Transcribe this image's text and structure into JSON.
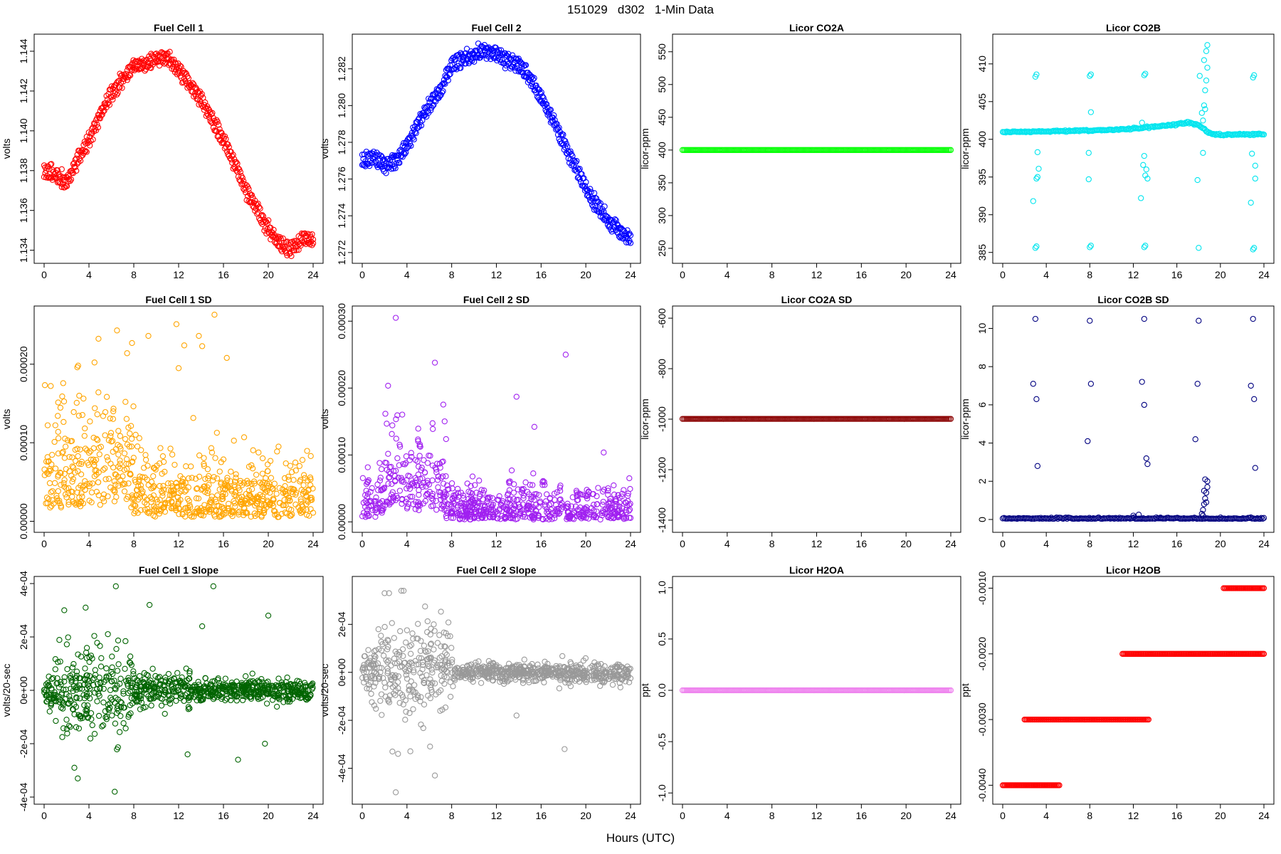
{
  "page": {
    "title": "151029   d302   1-Min Data",
    "xlabel": "Hours (UTC)"
  },
  "chart_data": [
    {
      "type": "scatter",
      "title": "Fuel Cell 1",
      "ylabel": "volts",
      "color": "#ff0000",
      "xlim": [
        0,
        24
      ],
      "ylim": [
        1.1337,
        1.1445
      ],
      "xticks": [
        0,
        4,
        8,
        12,
        16,
        20,
        24
      ],
      "yticks": [
        1.134,
        1.136,
        1.138,
        1.14,
        1.142,
        1.144
      ],
      "yticklabels": [
        "1.134",
        "1.136",
        "1.138",
        "1.140",
        "1.142",
        "1.144"
      ],
      "gen": {
        "kind": "anchors",
        "bands": [
          -0.00015,
          0.00025
        ],
        "noise": 0.0003,
        "anchors": [
          [
            0,
            1.138
          ],
          [
            1,
            1.1377
          ],
          [
            2,
            1.1373
          ],
          [
            3,
            1.1385
          ],
          [
            4,
            1.1395
          ],
          [
            5,
            1.1408
          ],
          [
            6,
            1.1418
          ],
          [
            7,
            1.1425
          ],
          [
            8,
            1.1432
          ],
          [
            9,
            1.1433
          ],
          [
            10,
            1.1436
          ],
          [
            11,
            1.1436
          ],
          [
            12,
            1.143
          ],
          [
            13,
            1.1423
          ],
          [
            14,
            1.1415
          ],
          [
            15,
            1.1405
          ],
          [
            16,
            1.1395
          ],
          [
            17,
            1.1383
          ],
          [
            18,
            1.137
          ],
          [
            19,
            1.136
          ],
          [
            20,
            1.135
          ],
          [
            21,
            1.1343
          ],
          [
            22,
            1.1339
          ],
          [
            23,
            1.1345
          ],
          [
            24,
            1.1345
          ]
        ]
      }
    },
    {
      "type": "scatter",
      "title": "Fuel Cell 2",
      "ylabel": "volts",
      "color": "#0000ff",
      "xlim": [
        0,
        24
      ],
      "ylim": [
        1.2718,
        1.2835
      ],
      "xticks": [
        0,
        4,
        8,
        12,
        16,
        20,
        24
      ],
      "yticks": [
        1.272,
        1.274,
        1.276,
        1.278,
        1.28,
        1.282
      ],
      "yticklabels": [
        "1.272",
        "1.274",
        "1.276",
        "1.278",
        "1.280",
        "1.282"
      ],
      "gen": {
        "kind": "anchors",
        "bands": [
          -0.00022,
          0.00022
        ],
        "noise": 0.0003,
        "anchors": [
          [
            0,
            1.277
          ],
          [
            1,
            1.2772
          ],
          [
            2,
            1.2768
          ],
          [
            3,
            1.277
          ],
          [
            4,
            1.2778
          ],
          [
            5,
            1.279
          ],
          [
            6,
            1.28
          ],
          [
            7,
            1.2808
          ],
          [
            8,
            1.2822
          ],
          [
            9,
            1.2826
          ],
          [
            10,
            1.2827
          ],
          [
            11,
            1.283
          ],
          [
            12,
            1.2828
          ],
          [
            13,
            1.2825
          ],
          [
            14,
            1.2822
          ],
          [
            15,
            1.2815
          ],
          [
            16,
            1.2805
          ],
          [
            17,
            1.2793
          ],
          [
            18,
            1.278
          ],
          [
            19,
            1.2768
          ],
          [
            20,
            1.2755
          ],
          [
            21,
            1.2745
          ],
          [
            22,
            1.2737
          ],
          [
            23,
            1.2732
          ],
          [
            24,
            1.2727
          ]
        ]
      }
    },
    {
      "type": "scatter",
      "title": "Licor CO2A",
      "ylabel": "licor-ppm",
      "color": "#00ff00",
      "xlim": [
        0,
        24
      ],
      "ylim": [
        238,
        566
      ],
      "xticks": [
        0,
        4,
        8,
        12,
        16,
        20,
        24
      ],
      "yticks": [
        250,
        300,
        350,
        400,
        450,
        500,
        550
      ],
      "yticklabels": [
        "250",
        "300",
        "350",
        "400",
        "450",
        "500",
        "550"
      ],
      "gen": {
        "kind": "flat",
        "value": 400,
        "noise": 0
      }
    },
    {
      "type": "scatter",
      "title": "Licor CO2B",
      "ylabel": "licor-ppm",
      "color": "#00e5ee",
      "xlim": [
        0,
        24
      ],
      "ylim": [
        384.5,
        413
      ],
      "xticks": [
        0,
        4,
        8,
        12,
        16,
        20,
        24
      ],
      "yticks": [
        385,
        390,
        395,
        400,
        405,
        410
      ],
      "yticklabels": [
        "385",
        "390",
        "395",
        "400",
        "405",
        "410"
      ],
      "gen": {
        "kind": "anchors",
        "bands": [
          0
        ],
        "noise": 0.15,
        "anchors": [
          [
            0,
            401
          ],
          [
            3,
            401
          ],
          [
            6,
            401.1
          ],
          [
            9,
            401.2
          ],
          [
            12,
            401.4
          ],
          [
            15,
            401.8
          ],
          [
            17,
            402.2
          ],
          [
            18,
            401.9
          ],
          [
            18.8,
            401
          ],
          [
            19.5,
            400.6
          ],
          [
            24,
            400.7
          ]
        ]
      },
      "extra": [
        [
          3.0,
          408.3
        ],
        [
          3.1,
          408.6
        ],
        [
          8,
          408.4
        ],
        [
          8.1,
          408.6
        ],
        [
          13,
          408.5
        ],
        [
          13.1,
          408.7
        ],
        [
          18.1,
          408.4
        ],
        [
          23,
          408.2
        ],
        [
          23.1,
          408.5
        ],
        [
          3.0,
          385.6
        ],
        [
          3.1,
          385.8
        ],
        [
          8,
          385.7
        ],
        [
          8.1,
          385.9
        ],
        [
          13,
          385.7
        ],
        [
          13.1,
          385.9
        ],
        [
          18,
          385.6
        ],
        [
          23,
          385.4
        ],
        [
          23.1,
          385.6
        ],
        [
          3.1,
          394.8
        ],
        [
          3.2,
          395
        ],
        [
          13.1,
          395.2
        ],
        [
          13.3,
          394.8
        ],
        [
          23.2,
          394.8
        ],
        [
          2.8,
          391.8
        ],
        [
          12.7,
          392.2
        ],
        [
          22.8,
          391.6
        ],
        [
          3.2,
          398.3
        ],
        [
          7.9,
          398.2
        ],
        [
          13,
          397.8
        ],
        [
          22.9,
          398.1
        ],
        [
          3.3,
          396.1
        ],
        [
          12.9,
          396.6
        ],
        [
          23.2,
          396.5
        ],
        [
          8.1,
          403.6
        ],
        [
          7.9,
          394.7
        ],
        [
          17.9,
          394.6
        ],
        [
          18.4,
          398.2
        ],
        [
          18.4,
          402.5
        ],
        [
          18.5,
          404.5
        ],
        [
          18.6,
          406.5
        ],
        [
          18.7,
          407.8
        ],
        [
          18.8,
          409.5
        ],
        [
          18.5,
          410.5
        ],
        [
          18.7,
          411.7
        ],
        [
          18.8,
          412.5
        ],
        [
          18.3,
          403.5
        ],
        [
          18.6,
          404
        ],
        [
          12.8,
          402.2
        ],
        [
          13.2,
          396
        ]
      ]
    },
    {
      "type": "scatter",
      "title": "Fuel Cell 1 SD",
      "ylabel": "volts",
      "color": "#ffa500",
      "xlim": [
        0,
        24
      ],
      "ylim": [
        -5e-06,
        0.000265
      ],
      "xticks": [
        0,
        4,
        8,
        12,
        16,
        20,
        24
      ],
      "yticks": [
        0,
        0.0001,
        0.0002
      ],
      "yticklabels": [
        "0.00000",
        "0.00010",
        "0.00020"
      ],
      "gen": {
        "kind": "sd",
        "segments": [
          [
            0,
            8,
            5e-05,
            0.00012
          ],
          [
            8,
            24,
            1.5e-05,
            6e-05
          ]
        ]
      },
      "extra": [
        [
          11.8,
          0.000251
        ],
        [
          15.2,
          0.000263
        ],
        [
          6.5,
          0.000243
        ],
        [
          9.3,
          0.000236
        ],
        [
          13.8,
          0.000236
        ],
        [
          14.1,
          0.000223
        ],
        [
          12.5,
          0.000224
        ],
        [
          7.4,
          0.000214
        ],
        [
          16.3,
          0.000208
        ],
        [
          12,
          0.000195
        ]
      ]
    },
    {
      "type": "scatter",
      "title": "Fuel Cell 2 SD",
      "ylabel": "volts",
      "color": "#a020f0",
      "xlim": [
        0,
        24
      ],
      "ylim": [
        -5e-06,
        0.000312
      ],
      "xticks": [
        0,
        4,
        8,
        12,
        16,
        20,
        24
      ],
      "yticks": [
        0,
        0.0001,
        0.0002,
        0.0003
      ],
      "yticklabels": [
        "0.00000",
        "0.00010",
        "0.00020",
        "0.00030"
      ],
      "gen": {
        "kind": "sd",
        "segments": [
          [
            0,
            2,
            2e-05,
            5e-05
          ],
          [
            2,
            4,
            7e-05,
            0.0001
          ],
          [
            4,
            7.5,
            5e-05,
            9e-05
          ],
          [
            7.5,
            24,
            1e-05,
            4e-05
          ]
        ]
      },
      "extra": [
        [
          3.0,
          0.000305
        ],
        [
          6.5,
          0.000238
        ],
        [
          18.2,
          0.00025
        ],
        [
          13.8,
          0.000187
        ],
        [
          15.4,
          0.000142
        ]
      ]
    },
    {
      "type": "scatter",
      "title": "Licor CO2A SD",
      "ylabel": "licor-ppm",
      "color": "#8b0000",
      "xlim": [
        0,
        24
      ],
      "ylim": [
        -1420,
        -580
      ],
      "xticks": [
        0,
        4,
        8,
        12,
        16,
        20,
        24
      ],
      "yticks": [
        -1400,
        -1200,
        -1000,
        -800,
        -600
      ],
      "yticklabels": [
        "-1400",
        "-1200",
        "-1000",
        "-800",
        "-600"
      ],
      "gen": {
        "kind": "flat",
        "value": -999,
        "noise": 0
      }
    },
    {
      "type": "scatter",
      "title": "Licor CO2B SD",
      "ylabel": "licor-ppm",
      "color": "#000080",
      "xlim": [
        0,
        24
      ],
      "ylim": [
        -0.3,
        10.8
      ],
      "xticks": [
        0,
        4,
        8,
        12,
        16,
        20,
        24
      ],
      "yticks": [
        0,
        2,
        4,
        6,
        8,
        10
      ],
      "yticklabels": [
        "0",
        "2",
        "4",
        "6",
        "8",
        "10"
      ],
      "gen": {
        "kind": "flat",
        "value": 0.03,
        "noise": 0.03
      },
      "extra": [
        [
          3,
          10.5
        ],
        [
          8,
          10.4
        ],
        [
          13,
          10.5
        ],
        [
          18,
          10.4
        ],
        [
          23,
          10.5
        ],
        [
          2.8,
          7.1
        ],
        [
          8.1,
          7.1
        ],
        [
          12.8,
          7.2
        ],
        [
          17.9,
          7.1
        ],
        [
          22.8,
          7
        ],
        [
          3.1,
          6.3
        ],
        [
          13,
          6
        ],
        [
          23.1,
          6.3
        ],
        [
          7.8,
          4.1
        ],
        [
          17.7,
          4.2
        ],
        [
          3.2,
          2.8
        ],
        [
          13.2,
          3.2
        ],
        [
          13.3,
          2.9
        ],
        [
          23.2,
          2.7
        ],
        [
          18.3,
          0.3
        ],
        [
          18.4,
          0.5
        ],
        [
          18.5,
          0.8
        ],
        [
          18.6,
          1.1
        ],
        [
          18.7,
          1.4
        ],
        [
          18.8,
          1.7
        ],
        [
          18.6,
          2.1
        ],
        [
          18.8,
          2.0
        ],
        [
          18.5,
          1.5
        ],
        [
          18.7,
          0.9
        ],
        [
          18.4,
          0.2
        ],
        [
          12,
          0.2
        ],
        [
          12.5,
          0.25
        ],
        [
          14.5,
          0.1
        ]
      ]
    },
    {
      "type": "scatter",
      "title": "Fuel Cell 1 Slope",
      "ylabel": "volts/20-sec",
      "color": "#006400",
      "xlim": [
        0,
        24
      ],
      "ylim": [
        -0.0004,
        0.0004
      ],
      "xticks": [
        0,
        4,
        8,
        12,
        16,
        20,
        24
      ],
      "yticks": [
        -0.0004,
        -0.0002,
        0,
        0.0002,
        0.0004
      ],
      "yticklabels": [
        "-4e-04",
        "-2e-04",
        "0e+00",
        "2e-04",
        "4e-04"
      ],
      "gen": {
        "kind": "slope",
        "segments": [
          [
            0,
            1,
            5e-05
          ],
          [
            1,
            8,
            0.00012
          ],
          [
            8,
            13,
            5e-05
          ],
          [
            13,
            24,
            3e-05
          ]
        ]
      },
      "extra": [
        [
          6.4,
          0.00039
        ],
        [
          15.1,
          0.00039
        ],
        [
          6.3,
          -0.00038
        ],
        [
          3,
          -0.00033
        ],
        [
          2.7,
          -0.00029
        ],
        [
          17.3,
          -0.00026
        ],
        [
          12.8,
          -0.00024
        ],
        [
          19.7,
          -0.0002
        ],
        [
          14.1,
          0.00024
        ],
        [
          1.8,
          0.0003
        ],
        [
          3.7,
          0.00031
        ],
        [
          9.4,
          0.00032
        ],
        [
          20,
          0.00028
        ]
      ]
    },
    {
      "type": "scatter",
      "title": "Fuel Cell 2 Slope",
      "ylabel": "volts/20-sec",
      "color": "#999999",
      "xlim": [
        0,
        24
      ],
      "ylim": [
        -0.00052,
        0.00037
      ],
      "xticks": [
        0,
        4,
        8,
        12,
        16,
        20,
        24
      ],
      "yticks": [
        -0.0004,
        -0.0002,
        0,
        0.0002
      ],
      "yticklabels": [
        "-4e-04",
        "-2e-04",
        "0e+00",
        "2e-04"
      ],
      "gen": {
        "kind": "slope",
        "segments": [
          [
            0,
            1,
            6e-05
          ],
          [
            1,
            8,
            0.00013
          ],
          [
            8,
            24,
            3e-05
          ]
        ]
      },
      "extra": [
        [
          3,
          -0.0005
        ],
        [
          6.5,
          -0.00043
        ],
        [
          3.2,
          -0.00034
        ],
        [
          2.7,
          -0.00033
        ],
        [
          18.1,
          -0.00032
        ],
        [
          2,
          0.00033
        ],
        [
          2.4,
          0.00033
        ],
        [
          3.5,
          0.00034
        ],
        [
          3.7,
          0.00034
        ],
        [
          6.4,
          0.0002
        ],
        [
          13.8,
          -0.00018
        ]
      ]
    },
    {
      "type": "scatter",
      "title": "Licor H2OA",
      "ylabel": "ppt",
      "color": "#ee82ee",
      "xlim": [
        0,
        24
      ],
      "ylim": [
        -1.04,
        1.04
      ],
      "xticks": [
        0,
        4,
        8,
        12,
        16,
        20,
        24
      ],
      "yticks": [
        -1,
        -0.5,
        0,
        0.5,
        1
      ],
      "yticklabels": [
        "-1.0",
        "-0.5",
        "0.0",
        "0.5",
        "1.0"
      ],
      "gen": {
        "kind": "flat",
        "value": 0,
        "noise": 0
      }
    },
    {
      "type": "scatter",
      "title": "Licor H2OB",
      "ylabel": "ppt",
      "color": "#ff0000",
      "xlim": [
        0,
        24
      ],
      "ylim": [
        -0.00418,
        -0.00093
      ],
      "xticks": [
        0,
        4,
        8,
        12,
        16,
        20,
        24
      ],
      "yticks": [
        -0.004,
        -0.003,
        -0.002,
        -0.001
      ],
      "yticklabels": [
        "-0.0040",
        "-0.0030",
        "-0.0020",
        "-0.0010"
      ],
      "gen": {
        "kind": "steps",
        "steps": [
          [
            0,
            5.2,
            -0.004
          ],
          [
            2,
            13.4,
            -0.003
          ],
          [
            11,
            24,
            -0.002
          ],
          [
            20.3,
            24,
            -0.001
          ]
        ]
      }
    }
  ]
}
